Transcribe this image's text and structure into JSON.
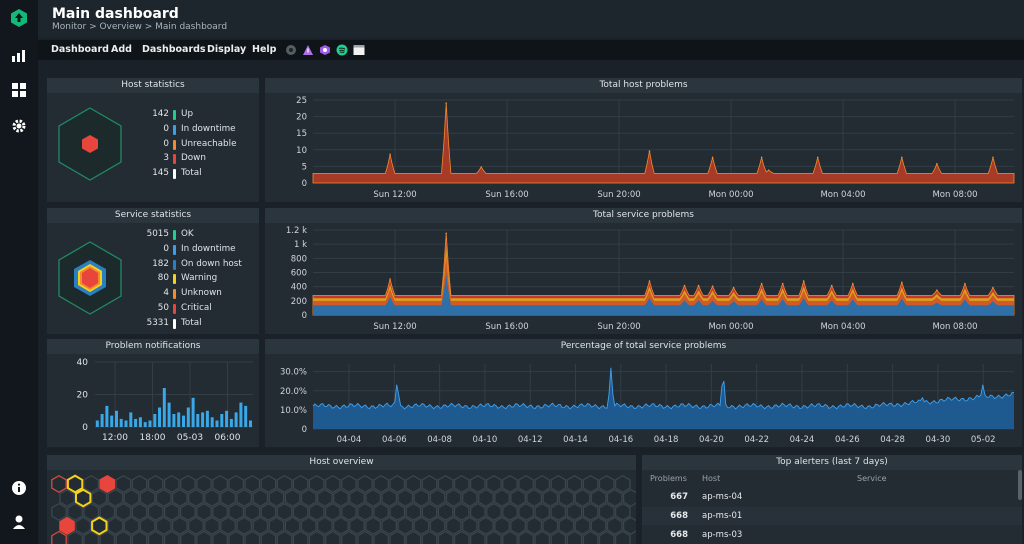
{
  "header": {
    "title": "Main dashboard",
    "breadcrumb": "Monitor > Overview > Main dashboard"
  },
  "menu": {
    "items": [
      "Dashboard",
      "Add",
      "Dashboards",
      "Display",
      "Help"
    ],
    "icons": [
      "dark-mode-icon",
      "warning-icon",
      "shield-icon",
      "spotify-icon",
      "window-icon"
    ]
  },
  "sidebar": {
    "icons": [
      "logo-icon",
      "stats-icon",
      "grid-icon",
      "gear-icon",
      "info-icon",
      "user-icon"
    ]
  },
  "host_stats": {
    "title": "Host statistics",
    "rows": [
      {
        "value": "142",
        "label": "Up",
        "color": "#1ecf8f"
      },
      {
        "value": "0",
        "label": "In downtime",
        "color": "#3b9ee8"
      },
      {
        "value": "0",
        "label": "Unreachable",
        "color": "#f28a2e"
      },
      {
        "value": "3",
        "label": "Down",
        "color": "#e8453c"
      },
      {
        "value": "145",
        "label": "Total",
        "color": "#ffffff"
      }
    ]
  },
  "service_stats": {
    "title": "Service statistics",
    "rows": [
      {
        "value": "5015",
        "label": "OK",
        "color": "#1ecf8f"
      },
      {
        "value": "0",
        "label": "In downtime",
        "color": "#3b9ee8"
      },
      {
        "value": "182",
        "label": "On down host",
        "color": "#2a7fc0"
      },
      {
        "value": "80",
        "label": "Warning",
        "color": "#f5d21a"
      },
      {
        "value": "4",
        "label": "Unknown",
        "color": "#f28a2e"
      },
      {
        "value": "50",
        "label": "Critical",
        "color": "#e8453c"
      },
      {
        "value": "5331",
        "label": "Total",
        "color": "#ffffff"
      }
    ]
  },
  "panels": {
    "total_host": "Total host problems",
    "total_service": "Total service problems",
    "problem_notif": "Problem notifications",
    "pct_service": "Percentage of total service problems",
    "host_overview": "Host overview",
    "top_alerters": "Top alerters (last 7 days)"
  },
  "chart_data": [
    {
      "type": "area",
      "title": "Total host problems",
      "x_labels": [
        "Sun 12:00",
        "Sun 16:00",
        "Sun 20:00",
        "Mon 00:00",
        "Mon 04:00",
        "Mon 08:00"
      ],
      "y_ticks": [
        "25",
        "20",
        "15",
        "10",
        "5",
        "0"
      ],
      "ylim": [
        0,
        26
      ],
      "baseline": 3,
      "spikes": [
        {
          "x": 0.11,
          "y": 9
        },
        {
          "x": 0.19,
          "y": 25
        },
        {
          "x": 0.48,
          "y": 10
        },
        {
          "x": 0.57,
          "y": 8
        },
        {
          "x": 0.64,
          "y": 8
        },
        {
          "x": 0.72,
          "y": 8
        },
        {
          "x": 0.84,
          "y": 8
        },
        {
          "x": 0.89,
          "y": 6
        },
        {
          "x": 0.65,
          "y": 4
        },
        {
          "x": 0.97,
          "y": 8
        },
        {
          "x": 0.24,
          "y": 5
        }
      ]
    },
    {
      "type": "area",
      "title": "Total service problems",
      "x_labels": [
        "Sun 12:00",
        "Sun 16:00",
        "Sun 20:00",
        "Mon 00:00",
        "Mon 04:00",
        "Mon 08:00"
      ],
      "y_ticks": [
        "1.2 k",
        "1 k",
        "800",
        "600",
        "400",
        "200",
        "0"
      ],
      "ylim": [
        0,
        1300
      ],
      "baseline": 300,
      "spikes": [
        {
          "x": 0.11,
          "y": 550
        },
        {
          "x": 0.19,
          "y": 1250
        },
        {
          "x": 0.48,
          "y": 520
        },
        {
          "x": 0.53,
          "y": 450
        },
        {
          "x": 0.55,
          "y": 450
        },
        {
          "x": 0.57,
          "y": 440
        },
        {
          "x": 0.6,
          "y": 420
        },
        {
          "x": 0.64,
          "y": 480
        },
        {
          "x": 0.67,
          "y": 480
        },
        {
          "x": 0.7,
          "y": 520
        },
        {
          "x": 0.74,
          "y": 450
        },
        {
          "x": 0.77,
          "y": 480
        },
        {
          "x": 0.84,
          "y": 500
        },
        {
          "x": 0.89,
          "y": 380
        },
        {
          "x": 0.93,
          "y": 480
        },
        {
          "x": 0.97,
          "y": 420
        }
      ]
    },
    {
      "type": "bar",
      "title": "Problem notifications",
      "x_labels": [
        "12:00",
        "18:00",
        "05-03",
        "06:00"
      ],
      "y_ticks": [
        "40",
        "20",
        "0"
      ],
      "ylim": [
        0,
        40
      ],
      "values": [
        4,
        8,
        13,
        7,
        10,
        5,
        4,
        9,
        5,
        6,
        3,
        4,
        8,
        12,
        24,
        15,
        8,
        9,
        7,
        12,
        18,
        8,
        9,
        10,
        6,
        4,
        8,
        10,
        5,
        9,
        15,
        13,
        4
      ]
    },
    {
      "type": "line",
      "title": "Percentage of total service problems",
      "x_labels": [
        "04-04",
        "04-06",
        "04-08",
        "04-10",
        "04-12",
        "04-14",
        "04-16",
        "04-18",
        "04-20",
        "04-22",
        "04-24",
        "04-26",
        "04-28",
        "04-30",
        "05-02"
      ],
      "y_ticks": [
        "30.0%",
        "20.0%",
        "10.0%",
        "0"
      ],
      "ylim": [
        0,
        34
      ],
      "baseline": 12,
      "spikes": [
        {
          "x": 0.12,
          "y": 25
        },
        {
          "x": 0.425,
          "y": 32
        },
        {
          "x": 0.585,
          "y": 30
        },
        {
          "x": 0.955,
          "y": 25
        },
        {
          "x": 0.87,
          "y": 17
        }
      ]
    }
  ],
  "alerters": {
    "columns": [
      "Problems",
      "Host",
      "Service"
    ],
    "rows": [
      {
        "problems": "667",
        "host": "ap-ms-04",
        "service": ""
      },
      {
        "problems": "668",
        "host": "ap-ms-01",
        "service": ""
      },
      {
        "problems": "668",
        "host": "ap-ms-03",
        "service": ""
      }
    ]
  },
  "host_overview": {
    "rows": 4,
    "cols": 32,
    "red": [
      [
        0,
        3
      ],
      [
        1,
        9
      ],
      [
        3,
        0
      ],
      [
        3,
        14
      ],
      [
        4,
        17
      ],
      [
        4,
        28
      ]
    ],
    "yellow": [
      [
        1,
        0
      ],
      [
        1,
        1
      ],
      [
        2,
        3
      ],
      [
        5,
        27
      ],
      [
        6,
        11
      ],
      [
        7,
        13
      ],
      [
        10,
        30
      ]
    ],
    "red_outline": [
      [
        0,
        0
      ],
      [
        0,
        4
      ],
      [
        0,
        6
      ],
      [
        0,
        8
      ],
      [
        0,
        14
      ],
      [
        0,
        21
      ],
      [
        0,
        26
      ],
      [
        0,
        28
      ],
      [
        1,
        6
      ],
      [
        1,
        15
      ],
      [
        1,
        30
      ],
      [
        2,
        6
      ],
      [
        2,
        16
      ],
      [
        2,
        21
      ],
      [
        2,
        22
      ],
      [
        3,
        28
      ],
      [
        3,
        30
      ]
    ],
    "yellow_outline": [
      [
        0,
        7
      ],
      [
        0,
        8
      ],
      [
        1,
        12
      ],
      [
        1,
        13
      ],
      [
        1,
        18
      ],
      [
        1,
        21
      ],
      [
        2,
        10
      ],
      [
        2,
        11
      ],
      [
        2,
        19
      ],
      [
        2,
        20
      ],
      [
        2,
        23
      ],
      [
        2,
        27
      ],
      [
        3,
        12
      ],
      [
        3,
        13
      ],
      [
        3,
        24
      ],
      [
        3,
        25
      ]
    ]
  }
}
